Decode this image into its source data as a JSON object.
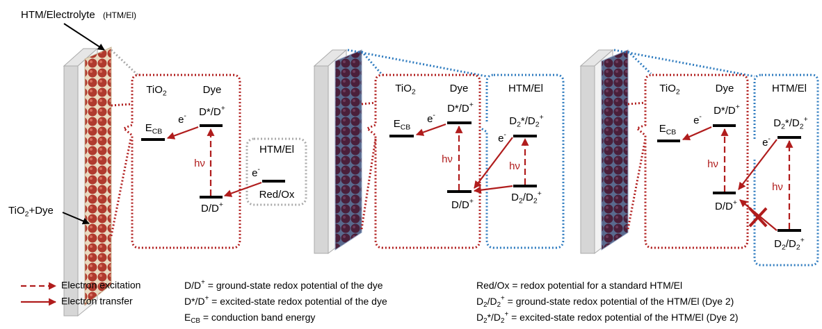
{
  "header": {
    "htm_electrolyte": "HTM/Electrolyte",
    "htm_el_abbrev": "(HTM/El)"
  },
  "device_label": [
    "TiO",
    {
      "sub": "2"
    },
    "+Dye"
  ],
  "panels": [
    {
      "tio2": [
        "TiO",
        {
          "sub": "2"
        }
      ],
      "dye": "Dye",
      "ecb": [
        "E",
        {
          "sub": "CB"
        }
      ],
      "e_dye": [
        "e",
        {
          "sup": "-"
        }
      ],
      "dstar": [
        "D*/D",
        {
          "sup": "+"
        }
      ],
      "hv_dye": "hν",
      "d": [
        "D/D",
        {
          "sup": "+"
        }
      ],
      "htm_el": "HTM/El",
      "e_htm": [
        "e",
        {
          "sup": "-"
        }
      ],
      "redox": "Red/Ox"
    },
    {
      "tio2": [
        "TiO",
        {
          "sub": "2"
        }
      ],
      "dye": "Dye",
      "ecb": [
        "E",
        {
          "sub": "CB"
        }
      ],
      "e_dye": [
        "e",
        {
          "sup": "-"
        }
      ],
      "dstar": [
        "D*/D",
        {
          "sup": "+"
        }
      ],
      "hv_dye": "hν",
      "d": [
        "D/D",
        {
          "sup": "+"
        }
      ],
      "htm_el": "HTM/El",
      "d2star": [
        "D",
        {
          "sub": "2"
        },
        "*/D",
        {
          "sub": "2"
        },
        {
          "sup": "+"
        }
      ],
      "e_htm": [
        "e",
        {
          "sup": "-"
        }
      ],
      "hv_htm": "hν",
      "d2": [
        "D",
        {
          "sub": "2"
        },
        "/D",
        {
          "sub": "2"
        },
        {
          "sup": "+"
        }
      ]
    },
    {
      "tio2": [
        "TiO",
        {
          "sub": "2"
        }
      ],
      "dye": "Dye",
      "ecb": [
        "E",
        {
          "sub": "CB"
        }
      ],
      "e_dye": [
        "e",
        {
          "sup": "-"
        }
      ],
      "dstar": [
        "D*/D",
        {
          "sup": "+"
        }
      ],
      "hv_dye": "hν",
      "d": [
        "D/D",
        {
          "sup": "+"
        }
      ],
      "htm_el": "HTM/El",
      "d2star": [
        "D",
        {
          "sub": "2"
        },
        "*/D",
        {
          "sub": "2"
        },
        {
          "sup": "+"
        }
      ],
      "e_htm": [
        "e",
        {
          "sup": "-"
        }
      ],
      "hv_htm": "hν",
      "d2": [
        "D",
        {
          "sub": "2"
        },
        "/D",
        {
          "sub": "2"
        },
        {
          "sup": "+"
        }
      ]
    }
  ],
  "legend": {
    "arrows": [
      "Electron excitation",
      "Electron transfer"
    ],
    "definitions_left": [
      [
        "D/D",
        {
          "sup": "+"
        },
        " = ground-state redox potential of the dye"
      ],
      [
        "D*/D",
        {
          "sup": "+"
        },
        " = excited-state redox potential of the dye"
      ],
      [
        "E",
        {
          "sub": "CB"
        },
        " = conduction band energy"
      ]
    ],
    "definitions_right": [
      [
        "Red/Ox = redox potential for a standard HTM/El"
      ],
      [
        "D",
        {
          "sub": "2"
        },
        "/D",
        {
          "sub": "2"
        },
        {
          "sup": "+"
        },
        " = ground-state redox potential of the HTM/El (Dye 2)"
      ],
      [
        "D",
        {
          "sub": "2"
        },
        "*/D",
        {
          "sub": "2"
        },
        {
          "sup": "+"
        },
        " = excited-state redox potential of the HTM/El (Dye 2)"
      ]
    ]
  }
}
